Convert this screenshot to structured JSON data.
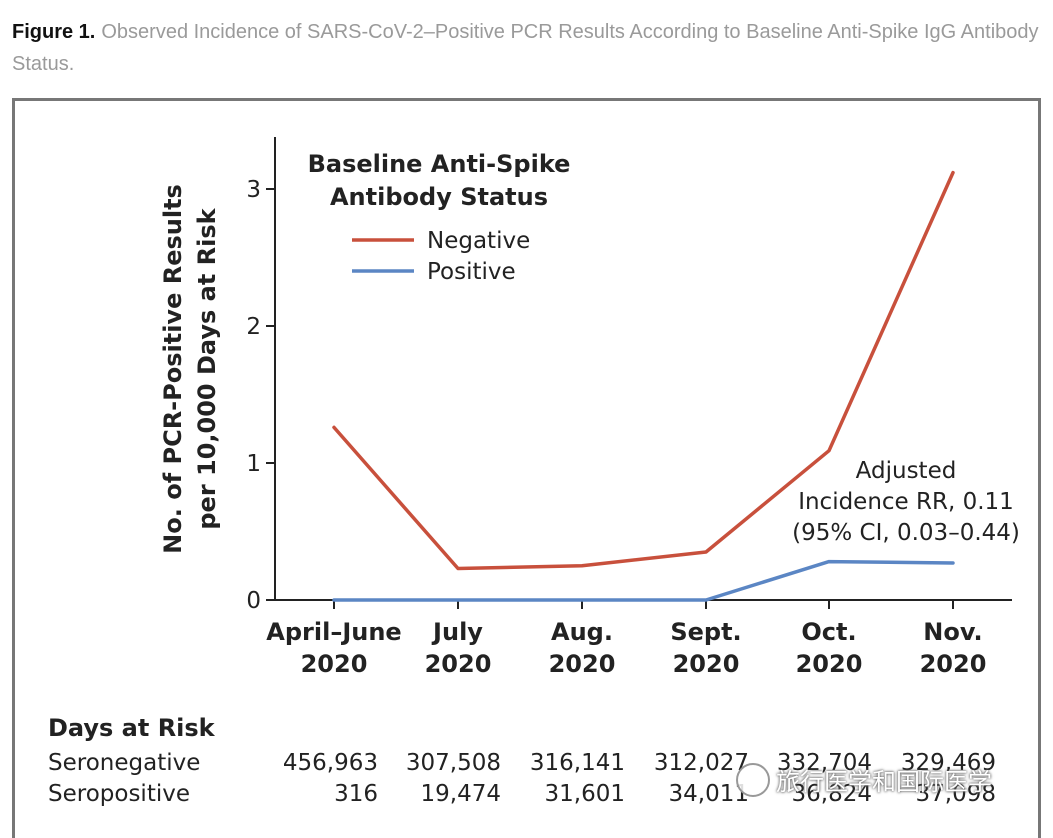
{
  "caption": {
    "label": "Figure 1.",
    "text": "Observed Incidence of SARS-CoV-2–Positive PCR Results According to Baseline Anti-Spike IgG Antibody Status."
  },
  "watermark": "旅行医学和国际医学",
  "colors": {
    "negative": "#c8503c",
    "positive": "#5b86c4",
    "axis": "#222222"
  },
  "chart_data": {
    "type": "line",
    "ylabel_lines": [
      "No. of PCR-Positive Results",
      "per 10,000 Days at Risk"
    ],
    "xlabel": "",
    "categories": [
      [
        "April–June",
        "2020"
      ],
      [
        "July",
        "2020"
      ],
      [
        "Aug.",
        "2020"
      ],
      [
        "Sept.",
        "2020"
      ],
      [
        "Oct.",
        "2020"
      ],
      [
        "Nov.",
        "2020"
      ]
    ],
    "ylim": [
      0,
      3.4
    ],
    "yticks": [
      0,
      1,
      2,
      3
    ],
    "legend_title_lines": [
      "Baseline Anti-Spike",
      "Antibody Status"
    ],
    "series": [
      {
        "name": "Negative",
        "color": "#c8503c",
        "values": [
          1.26,
          0.23,
          0.25,
          0.35,
          1.09,
          3.12
        ]
      },
      {
        "name": "Positive",
        "color": "#5b86c4",
        "values": [
          0,
          0,
          0,
          0,
          0.28,
          0.27
        ]
      }
    ],
    "annotation_lines": [
      "Adjusted",
      "Incidence RR, 0.11",
      "(95% CI, 0.03–0.44)"
    ]
  },
  "risk_table": {
    "title": "Days at Risk",
    "rows": [
      {
        "label": "Seronegative",
        "values": [
          "456,963",
          "307,508",
          "316,141",
          "312,027",
          "332,704",
          "329,469"
        ]
      },
      {
        "label": "Seropositive",
        "values": [
          "316",
          "19,474",
          "31,601",
          "34,011",
          "36,824",
          "37,098"
        ]
      }
    ]
  }
}
